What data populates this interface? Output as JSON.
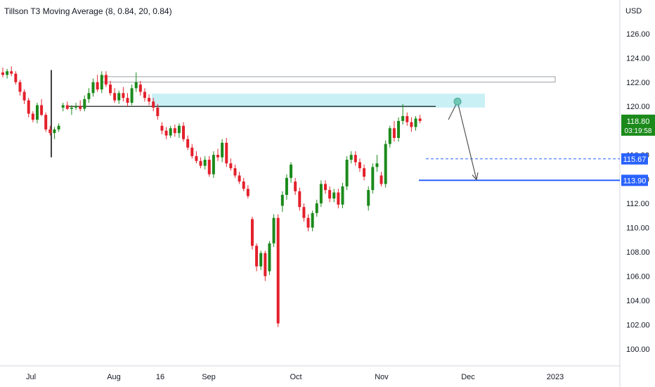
{
  "indicator": {
    "label": "Tillson T3 Moving Average (8, 0.84, 20, 0.84)"
  },
  "price_axis": {
    "currency": "USD"
  },
  "colors": {
    "up": "#1b8a1b",
    "down": "#e3202b",
    "grid_text": "#131722",
    "axis_line": "#d1d4dc",
    "zone_fill": "#c9f0f5",
    "level_blue": "#2962ff",
    "level_line": "#000000",
    "last_price_bg": "#1b8a1b",
    "dot": "#6fc7b4"
  },
  "chart_data": {
    "type": "candlestick",
    "title": "",
    "ylim": [
      99,
      127.5
    ],
    "y_ticks": [
      100,
      102,
      104,
      106,
      108,
      110,
      112,
      114,
      116,
      118,
      120,
      122,
      124,
      126
    ],
    "y_tick_labels": [
      "100.00",
      "102.00",
      "104.00",
      "106.00",
      "108.00",
      "110.00",
      "112.00",
      "114.00",
      "116.00",
      "118.00",
      "120.00",
      "122.00",
      "124.00",
      "126.00"
    ],
    "x_labels": [
      "Jul",
      "Aug",
      "16",
      "Sep",
      "Oct",
      "Nov",
      "Dec",
      "2023"
    ],
    "last_price": {
      "value": 118.8,
      "label": "118.80",
      "countdown": "03:19:58"
    },
    "levels": [
      {
        "value": 115.67,
        "label": "115.67",
        "style": "dashed"
      },
      {
        "value": 113.9,
        "label": "113.90",
        "style": "solid"
      }
    ],
    "candles": [
      [
        122.8,
        123.2,
        122.4,
        122.6
      ],
      [
        122.6,
        123.1,
        122.3,
        122.9
      ],
      [
        122.9,
        123.3,
        122.5,
        122.7
      ],
      [
        122.7,
        122.9,
        121.8,
        122.0
      ],
      [
        122.0,
        122.2,
        120.9,
        121.2
      ],
      [
        121.2,
        121.4,
        120.2,
        120.5
      ],
      [
        120.5,
        120.7,
        119.1,
        119.4
      ],
      [
        119.4,
        119.6,
        118.7,
        118.9
      ],
      [
        118.9,
        120.3,
        118.6,
        120.1
      ],
      [
        120.1,
        120.6,
        119.2,
        119.3
      ],
      [
        119.3,
        119.5,
        117.9,
        118.1
      ],
      [
        118.1,
        118.4,
        117.6,
        117.8
      ],
      [
        117.8,
        118.3,
        117.3,
        118.1
      ],
      [
        118.1,
        118.6,
        117.9,
        118.4
      ],
      [
        119.9,
        120.3,
        119.6,
        120.1
      ],
      [
        120.1,
        120.4,
        119.7,
        119.8
      ],
      [
        119.8,
        120.1,
        119.3,
        119.9
      ],
      [
        119.9,
        120.3,
        119.7,
        120.0
      ],
      [
        120.0,
        120.5,
        119.6,
        119.8
      ],
      [
        119.8,
        120.9,
        119.6,
        120.6
      ],
      [
        120.6,
        121.5,
        120.3,
        121.1
      ],
      [
        121.1,
        122.3,
        120.8,
        122.0
      ],
      [
        122.0,
        122.6,
        121.2,
        121.4
      ],
      [
        121.4,
        122.9,
        121.1,
        122.6
      ],
      [
        122.6,
        122.9,
        121.6,
        121.8
      ],
      [
        121.8,
        122.1,
        120.9,
        121.1
      ],
      [
        121.1,
        121.5,
        120.3,
        120.5
      ],
      [
        120.5,
        121.3,
        120.2,
        121.1
      ],
      [
        121.1,
        121.6,
        120.4,
        120.7
      ],
      [
        120.7,
        121.1,
        120.0,
        120.3
      ],
      [
        120.3,
        121.8,
        120.1,
        121.5
      ],
      [
        121.5,
        122.8,
        121.2,
        122.0
      ],
      [
        121.8,
        122.1,
        120.9,
        121.2
      ],
      [
        121.2,
        121.5,
        120.4,
        120.7
      ],
      [
        120.7,
        121.0,
        120.1,
        120.4
      ],
      [
        120.4,
        120.7,
        119.6,
        119.9
      ],
      [
        119.9,
        120.2,
        118.9,
        119.2
      ],
      [
        118.4,
        118.7,
        117.7,
        118.0
      ],
      [
        118.0,
        118.3,
        117.3,
        117.6
      ],
      [
        117.6,
        118.4,
        117.4,
        118.2
      ],
      [
        118.2,
        118.5,
        117.5,
        117.8
      ],
      [
        117.8,
        118.6,
        117.4,
        118.4
      ],
      [
        118.4,
        118.7,
        117.1,
        117.3
      ],
      [
        117.3,
        117.6,
        116.4,
        116.6
      ],
      [
        116.6,
        116.9,
        115.7,
        115.9
      ],
      [
        115.9,
        116.3,
        115.3,
        115.5
      ],
      [
        115.5,
        115.8,
        114.9,
        115.1
      ],
      [
        115.1,
        115.9,
        114.8,
        115.6
      ],
      [
        115.6,
        115.9,
        114.2,
        114.4
      ],
      [
        114.4,
        116.3,
        114.1,
        116.0
      ],
      [
        116.0,
        116.5,
        115.5,
        115.8
      ],
      [
        115.8,
        117.3,
        115.4,
        117.0
      ],
      [
        117.0,
        117.4,
        115.0,
        115.3
      ],
      [
        115.3,
        115.7,
        114.7,
        114.9
      ],
      [
        114.9,
        115.2,
        114.1,
        114.3
      ],
      [
        114.3,
        114.6,
        113.6,
        113.8
      ],
      [
        113.8,
        114.1,
        113.0,
        113.2
      ],
      [
        113.2,
        113.5,
        112.4,
        112.6
      ],
      [
        110.7,
        110.9,
        108.2,
        108.5
      ],
      [
        108.5,
        108.7,
        106.4,
        106.8
      ],
      [
        106.8,
        108.1,
        106.5,
        107.9
      ],
      [
        107.9,
        108.1,
        105.6,
        106.0
      ],
      [
        106.4,
        108.9,
        106.1,
        108.7
      ],
      [
        108.7,
        111.1,
        108.4,
        110.8
      ],
      [
        110.8,
        111.1,
        101.8,
        102.1
      ],
      [
        111.8,
        113.0,
        111.3,
        112.7
      ],
      [
        112.7,
        114.4,
        112.3,
        114.1
      ],
      [
        114.1,
        115.4,
        113.7,
        115.2
      ],
      [
        113.8,
        114.1,
        112.7,
        113.0
      ],
      [
        113.0,
        113.3,
        111.4,
        111.7
      ],
      [
        111.7,
        112.0,
        110.5,
        110.8
      ],
      [
        110.8,
        111.1,
        109.7,
        110.0
      ],
      [
        110.0,
        111.4,
        109.7,
        111.2
      ],
      [
        111.2,
        112.3,
        110.9,
        112.0
      ],
      [
        112.0,
        113.9,
        111.7,
        113.6
      ],
      [
        113.6,
        113.9,
        112.8,
        113.1
      ],
      [
        113.1,
        113.4,
        112.1,
        112.4
      ],
      [
        112.4,
        113.2,
        112.1,
        112.9
      ],
      [
        112.9,
        113.2,
        111.6,
        111.9
      ],
      [
        111.9,
        113.7,
        111.6,
        113.4
      ],
      [
        113.4,
        115.9,
        113.1,
        115.6
      ],
      [
        115.6,
        116.3,
        115.3,
        116.0
      ],
      [
        116.0,
        116.3,
        115.1,
        115.4
      ],
      [
        115.4,
        115.7,
        114.6,
        114.9
      ],
      [
        114.9,
        115.2,
        113.9,
        114.2
      ],
      [
        111.8,
        113.4,
        111.4,
        113.1
      ],
      [
        113.1,
        115.3,
        112.8,
        115.0
      ],
      [
        115.0,
        116.0,
        114.6,
        115.3
      ],
      [
        114.3,
        114.6,
        113.4,
        113.6
      ],
      [
        113.6,
        117.2,
        113.3,
        116.9
      ],
      [
        116.9,
        118.4,
        116.6,
        118.2
      ],
      [
        118.2,
        118.8,
        117.1,
        117.4
      ],
      [
        117.4,
        119.1,
        117.1,
        118.8
      ],
      [
        118.8,
        120.2,
        118.5,
        119.2
      ],
      [
        119.2,
        119.5,
        118.4,
        118.7
      ],
      [
        118.7,
        119.1,
        117.9,
        118.3
      ],
      [
        118.3,
        119.2,
        118.0,
        119.0
      ],
      [
        119.0,
        119.3,
        118.6,
        118.8
      ]
    ]
  }
}
